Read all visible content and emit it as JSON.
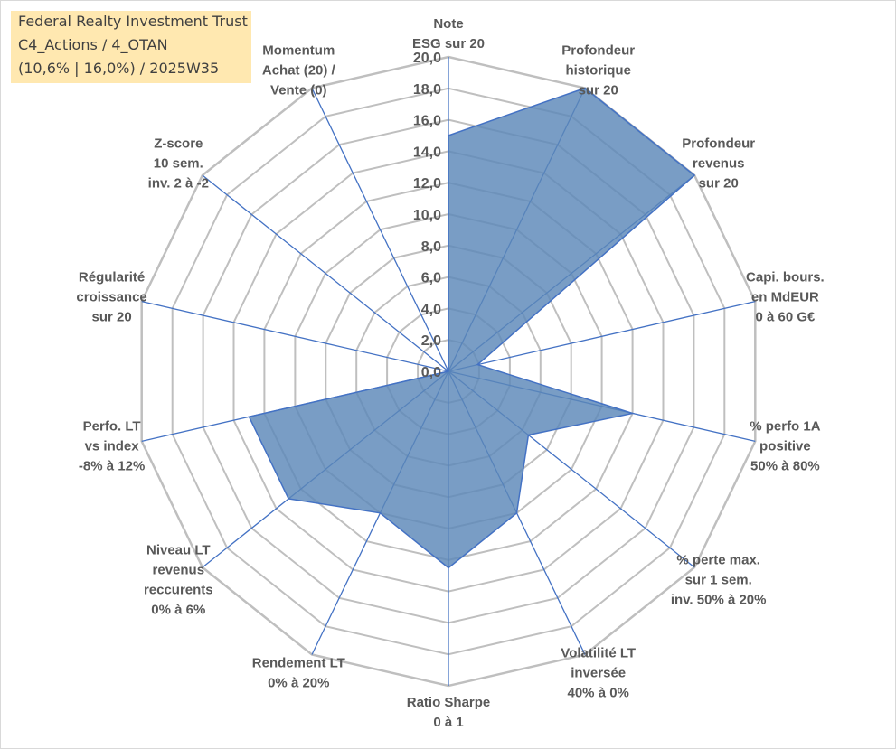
{
  "title_box": {
    "line1": "Federal Realty Investment Trust",
    "line2": "C4_Actions / 4_OTAN",
    "line3": "(10,6% | 16,0%) / 2025W35"
  },
  "colors": {
    "title_bg": "#ffe8b0",
    "fill": "#5b87b8",
    "stroke": "#4472c4",
    "grid": "#bfbfbf",
    "spoke": "#4472c4",
    "text": "#595959"
  },
  "chart_data": {
    "type": "radar",
    "scale": {
      "min": 0,
      "max": 20,
      "step": 2
    },
    "tick_labels": [
      "0,0",
      "2,0",
      "4,0",
      "6,0",
      "8,0",
      "10,0",
      "12,0",
      "14,0",
      "16,0",
      "18,0",
      "20,0"
    ],
    "axes": [
      {
        "label": [
          "Note",
          "ESG sur 20"
        ],
        "value": 15.0
      },
      {
        "label": [
          "Profondeur",
          "historique",
          "sur 20"
        ],
        "value": 20.0
      },
      {
        "label": [
          "Profondeur",
          "revenus",
          "sur 20"
        ],
        "value": 20.0
      },
      {
        "label": [
          "Capi. bours.",
          "en MdEUR",
          "0 à 60 G€"
        ],
        "value": 1.9
      },
      {
        "label": [
          "% perfo 1A",
          "positive",
          "50% à 80%"
        ],
        "value": 12.0
      },
      {
        "label": [
          "% perte max.",
          "sur 1 sem.",
          "inv. 50% à 20%"
        ],
        "value": 6.5
      },
      {
        "label": [
          "Volatilité LT",
          "inversée",
          "40% à 0%"
        ],
        "value": 10.0
      },
      {
        "label": [
          "Ratio Sharpe",
          "0 à 1"
        ],
        "value": 12.5
      },
      {
        "label": [
          "Rendement LT",
          "0% à 20%"
        ],
        "value": 10.0
      },
      {
        "label": [
          "Niveau LT",
          "revenus",
          "reccurents",
          "0% à 6%"
        ],
        "value": 13.0
      },
      {
        "label": [
          "Perfo. LT",
          "vs index",
          "-8% à 12%"
        ],
        "value": 13.0
      },
      {
        "label": [
          "Régularité",
          "croissance",
          "sur 20"
        ],
        "value": 0.0
      },
      {
        "label": [
          "Z-score",
          "10 sem.",
          "inv. 2 à -2"
        ],
        "value": 0.0
      },
      {
        "label": [
          "Momentum",
          "Achat (20) /",
          "Vente (0)"
        ],
        "value": 0.0
      }
    ]
  }
}
